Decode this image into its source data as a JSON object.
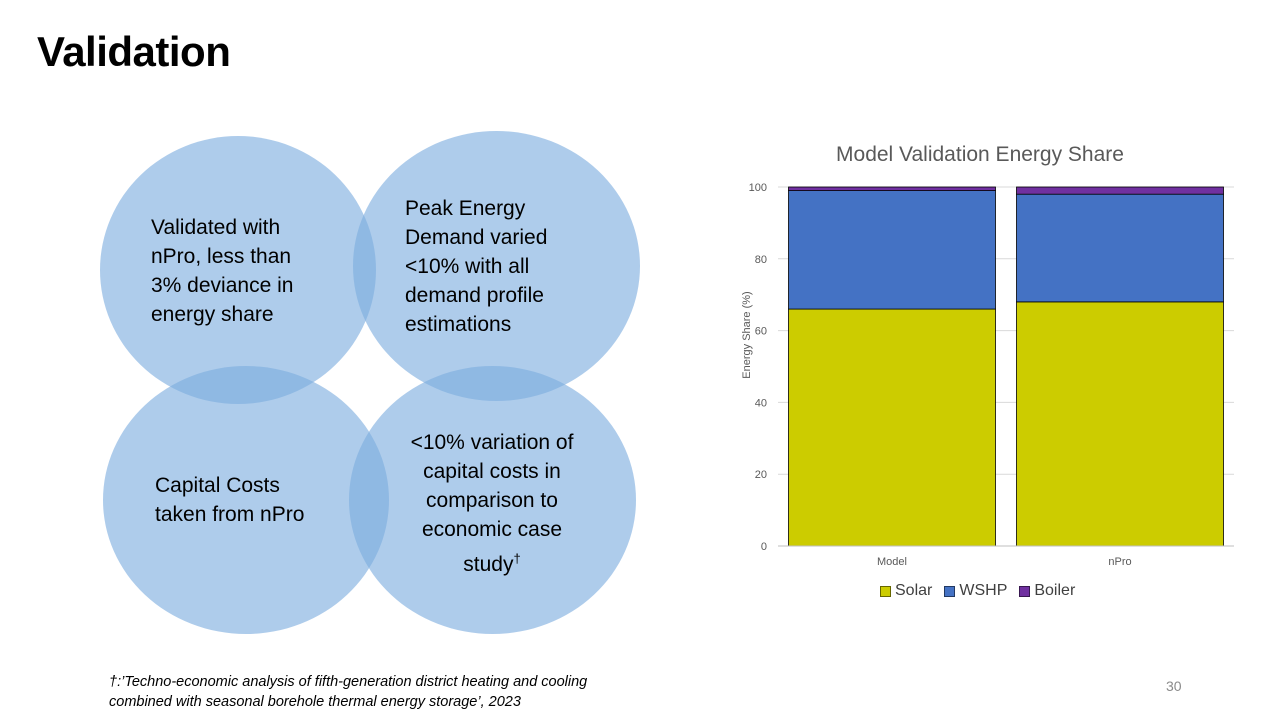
{
  "slide": {
    "title": "Validation",
    "page_number": "30"
  },
  "venn": {
    "top_left": [
      "Validated with",
      "nPro, less than",
      "3% deviance in",
      "energy share"
    ],
    "top_right": [
      "Peak Energy",
      "Demand varied",
      "<10% with all",
      "demand profile",
      "estimations"
    ],
    "bottom_left": [
      "Capital Costs",
      "taken from nPro"
    ],
    "bottom_right": [
      "<10% variation of",
      "capital costs in",
      "comparison to",
      "economic case",
      "study"
    ],
    "bottom_right_mark": "†"
  },
  "footnote": {
    "line1": "†:’Techno-economic analysis of fifth-generation district heating and cooling",
    "line2": "combined with seasonal borehole thermal energy storage’, 2023"
  },
  "colors": {
    "circle_fill": "#7dacde",
    "solar": "#cccc00",
    "wshp": "#4472c4",
    "boiler": "#7030a0"
  },
  "chart_data": {
    "type": "bar",
    "stacked": true,
    "title": "Model Validation Energy Share",
    "ylabel": "Energy Share (%)",
    "xlabel": "",
    "categories": [
      "Model",
      "nPro"
    ],
    "series": [
      {
        "name": "Solar",
        "values": [
          66,
          68
        ],
        "color": "#cccc00"
      },
      {
        "name": "WSHP",
        "values": [
          33,
          30
        ],
        "color": "#4472c4"
      },
      {
        "name": "Boiler",
        "values": [
          1,
          2
        ],
        "color": "#7030a0"
      }
    ],
    "ylim": [
      0,
      100
    ],
    "yticks": [
      0,
      20,
      40,
      60,
      80,
      100
    ],
    "grid": true,
    "legend": "bottom"
  }
}
